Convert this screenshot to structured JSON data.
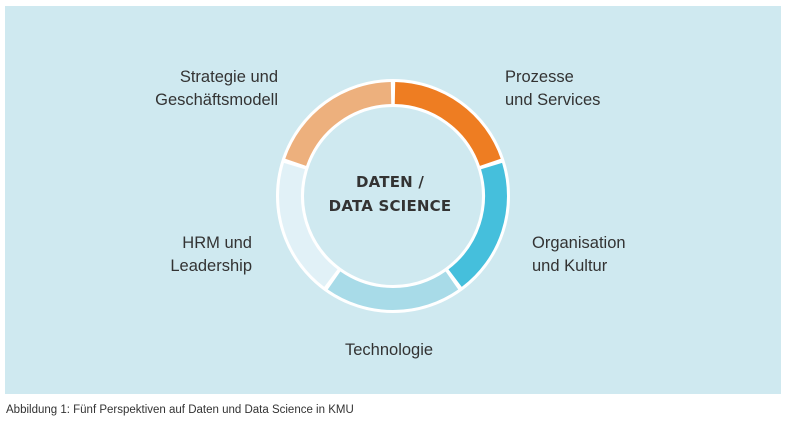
{
  "diagram": {
    "center_title_line1": "DATEN /",
    "center_title_line2": "DATA SCIENCE",
    "segments": [
      {
        "key": "prozesse",
        "line1": "Prozesse",
        "line2": "und Services",
        "color": "#ee7d22"
      },
      {
        "key": "organisation",
        "line1": "Organisation",
        "line2": "und Kultur",
        "color": "#45bfdc"
      },
      {
        "key": "technologie",
        "line1": "Technologie",
        "line2": "",
        "color": "#a8dbe8"
      },
      {
        "key": "hrm",
        "line1": "HRM und",
        "line2": "Leadership",
        "color": "#e1f1f7"
      },
      {
        "key": "strategie",
        "line1": "Strategie und",
        "line2": "Geschäftsmodell",
        "color": "#edb07d"
      }
    ]
  },
  "caption": "Abbildung 1: Fünf Perspektiven auf Daten und Data Science in KMU"
}
